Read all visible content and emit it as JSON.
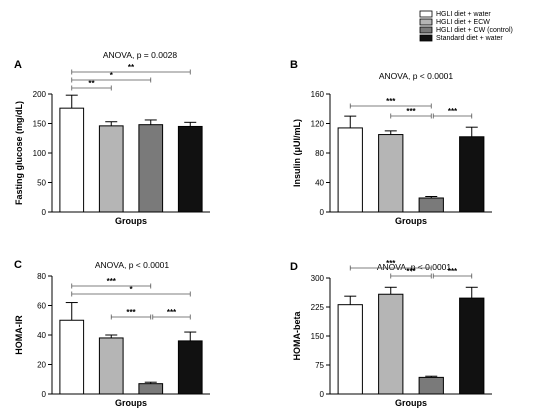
{
  "legend": [
    {
      "label": "HGLI diet + water",
      "color": "#ffffff"
    },
    {
      "label": "HGLI diet + ECW",
      "color": "#b5b5b5"
    },
    {
      "label": "HGLI diet + CW (control)",
      "color": "#7a7a7a"
    },
    {
      "label": "Standard diet + water",
      "color": "#111111"
    }
  ],
  "chart_data": [
    {
      "type": "bar",
      "panel": "A",
      "title": "ANOVA, p = 0.0028",
      "xlabel": "Groups",
      "ylabel": "Fasting glucose (mg/dL)",
      "ylim": [
        0,
        200
      ],
      "yticks": [
        0,
        50,
        100,
        150,
        200
      ],
      "categories": [
        "HGLI diet + water",
        "HGLI diet + ECW",
        "HGLI diet + CW (control)",
        "Standard diet + water"
      ],
      "values": [
        176,
        146,
        148,
        145
      ],
      "errors": [
        22,
        7,
        8,
        7
      ],
      "colors": [
        "#ffffff",
        "#b5b5b5",
        "#7a7a7a",
        "#111111"
      ],
      "significance": [
        {
          "from": 0,
          "to": 1,
          "label": "**"
        },
        {
          "from": 0,
          "to": 2,
          "label": "*"
        },
        {
          "from": 0,
          "to": 3,
          "label": "**"
        }
      ]
    },
    {
      "type": "bar",
      "panel": "B",
      "title": "ANOVA, p < 0.0001",
      "xlabel": "Groups",
      "ylabel": "Insulin (μUI/mL)",
      "ylim": [
        0,
        160
      ],
      "yticks": [
        0,
        40,
        80,
        120,
        160
      ],
      "categories": [
        "HGLI diet + water",
        "HGLI diet + ECW",
        "HGLI diet + CW (control)",
        "Standard diet + water"
      ],
      "values": [
        114,
        105,
        19,
        102
      ],
      "errors": [
        16,
        5,
        2,
        13
      ],
      "colors": [
        "#ffffff",
        "#b5b5b5",
        "#7a7a7a",
        "#111111"
      ],
      "significance": [
        {
          "from": 0,
          "to": 2,
          "label": "***"
        },
        {
          "from": 1,
          "to": 2,
          "label": "***"
        },
        {
          "from": 2,
          "to": 3,
          "label": "***"
        }
      ]
    },
    {
      "type": "bar",
      "panel": "C",
      "title": "ANOVA, p < 0.0001",
      "xlabel": "Groups",
      "ylabel": "HOMA-IR",
      "ylim": [
        0,
        80
      ],
      "yticks": [
        0,
        20,
        40,
        60,
        80
      ],
      "categories": [
        "HGLI diet + water",
        "HGLI diet + ECW",
        "HGLI diet + CW (control)",
        "Standard diet + water"
      ],
      "values": [
        50,
        38,
        7,
        36
      ],
      "errors": [
        12,
        2,
        1,
        6
      ],
      "colors": [
        "#ffffff",
        "#b5b5b5",
        "#7a7a7a",
        "#111111"
      ],
      "significance": [
        {
          "from": 0,
          "to": 2,
          "label": "***"
        },
        {
          "from": 0,
          "to": 3,
          "label": "*"
        },
        {
          "from": 1,
          "to": 2,
          "label": "***"
        },
        {
          "from": 2,
          "to": 3,
          "label": "***"
        }
      ]
    },
    {
      "type": "bar",
      "panel": "D",
      "title": "ANOVA, p < 0.0001",
      "xlabel": "Groups",
      "ylabel": "HOMA-beta",
      "ylim": [
        0,
        300
      ],
      "yticks": [
        0,
        75,
        150,
        225,
        300
      ],
      "categories": [
        "HGLI diet + water",
        "HGLI diet + ECW",
        "HGLI diet + CW (control)",
        "Standard diet + water"
      ],
      "values": [
        231,
        258,
        43,
        248
      ],
      "errors": [
        22,
        18,
        3,
        28
      ],
      "colors": [
        "#ffffff",
        "#b5b5b5",
        "#7a7a7a",
        "#111111"
      ],
      "significance": [
        {
          "from": 0,
          "to": 2,
          "label": "***"
        },
        {
          "from": 1,
          "to": 2,
          "label": "***"
        },
        {
          "from": 2,
          "to": 3,
          "label": "***"
        }
      ]
    }
  ]
}
